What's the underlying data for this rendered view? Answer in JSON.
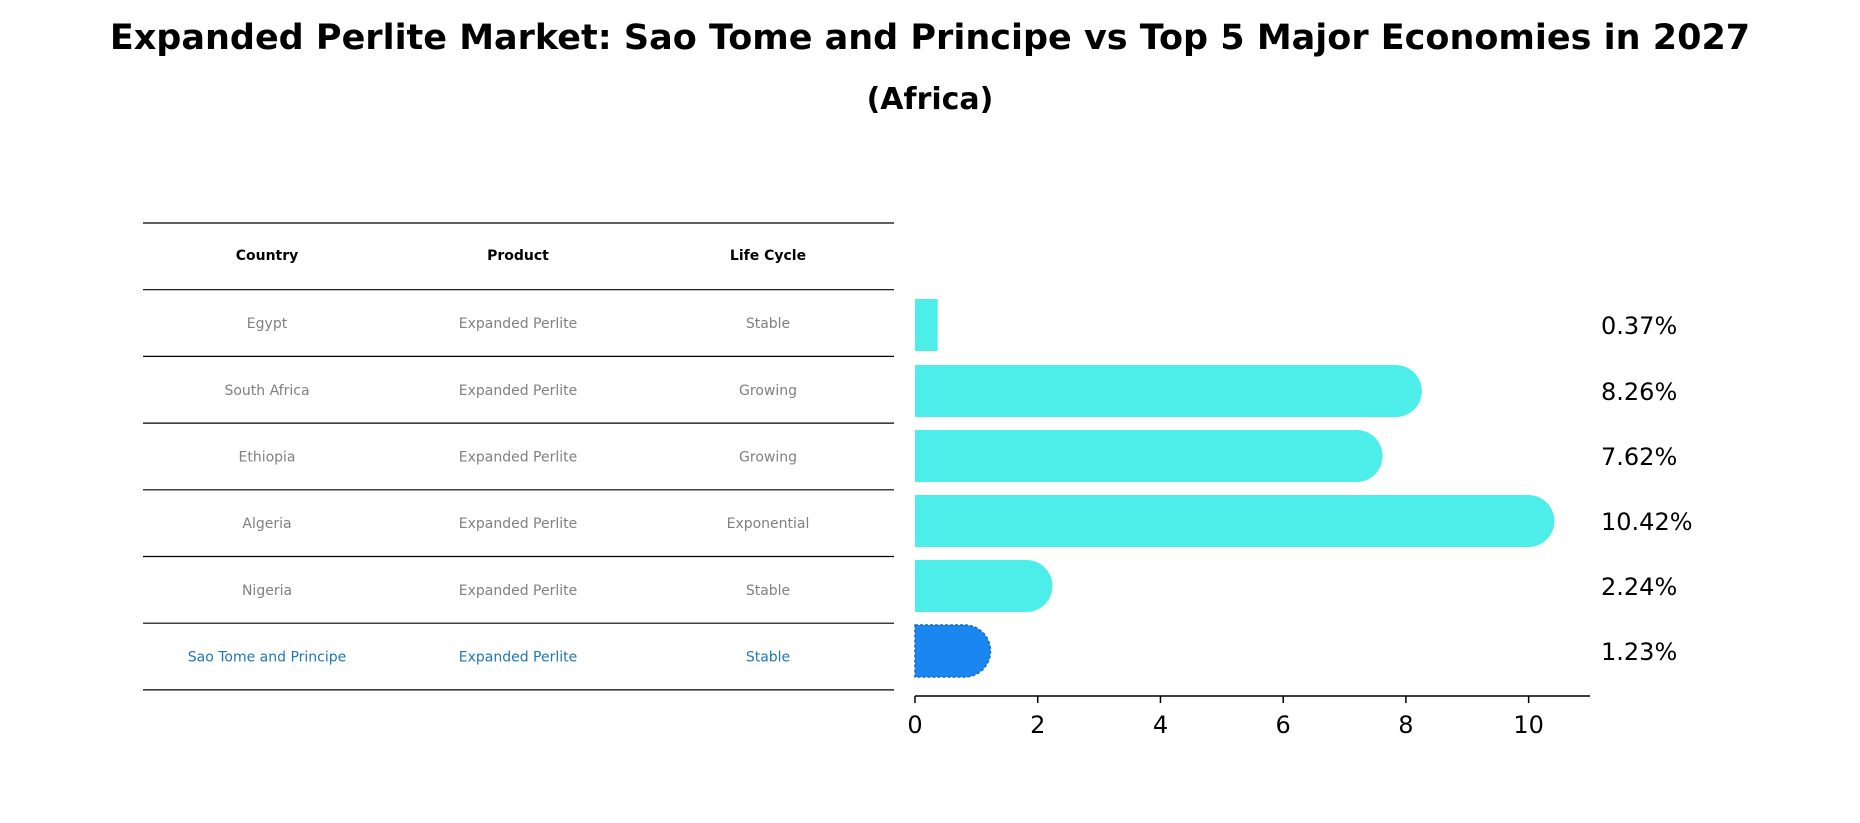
{
  "chart_data": {
    "type": "bar",
    "orientation": "horizontal",
    "title": "Expanded Perlite Market: Sao Tome and Principe vs Top 5 Major Economies in 2027",
    "subtitle": "(Africa)",
    "table": {
      "columns": [
        "Country",
        "Product",
        "Life Cycle"
      ],
      "rows": [
        {
          "country": "Egypt",
          "product": "Expanded Perlite",
          "life_cycle": "Stable"
        },
        {
          "country": "South Africa",
          "product": "Expanded Perlite",
          "life_cycle": "Growing"
        },
        {
          "country": "Ethiopia",
          "product": "Expanded Perlite",
          "life_cycle": "Growing"
        },
        {
          "country": "Algeria",
          "product": "Expanded Perlite",
          "life_cycle": "Exponential"
        },
        {
          "country": "Nigeria",
          "product": "Expanded Perlite",
          "life_cycle": "Stable"
        },
        {
          "country": "Sao Tome and Principe",
          "product": "Expanded Perlite",
          "life_cycle": "Stable"
        }
      ],
      "highlight_row": 5
    },
    "categories": [
      "Egypt",
      "South Africa",
      "Ethiopia",
      "Algeria",
      "Nigeria",
      "Sao Tome and Principe"
    ],
    "values": [
      0.37,
      8.26,
      7.62,
      10.42,
      2.24,
      1.23
    ],
    "value_labels": [
      "0.37%",
      "8.26%",
      "7.62%",
      "10.42%",
      "2.24%",
      "1.23%"
    ],
    "xlim": [
      0,
      11
    ],
    "xticks": [
      0,
      2,
      4,
      6,
      8,
      10
    ],
    "xtick_labels": [
      "0",
      "2",
      "4",
      "6",
      "8",
      "10"
    ],
    "colors": {
      "bar": "#4deeea",
      "highlight_bar": "#1a86f0",
      "highlight_text": "#1f77b4",
      "body_text": "#808080",
      "rule": "#000000"
    }
  }
}
